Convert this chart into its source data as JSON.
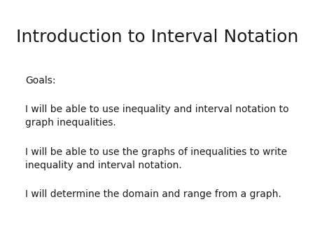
{
  "title": "Introduction to Interval Notation",
  "title_fontsize": 18,
  "title_color": "#1a1a1a",
  "background_color": "#ffffff",
  "text_color": "#1a1a1a",
  "body_fontsize": 10.0,
  "goals_label": "Goals:",
  "bullet1_line1": "I will be able to use inequality and interval notation to",
  "bullet1_line2": "graph inequalities.",
  "bullet2_line1": "I will be able to use the graphs of inequalities to write",
  "bullet2_line2": "inequality and interval notation.",
  "bullet3": "I will determine the domain and range from a graph."
}
